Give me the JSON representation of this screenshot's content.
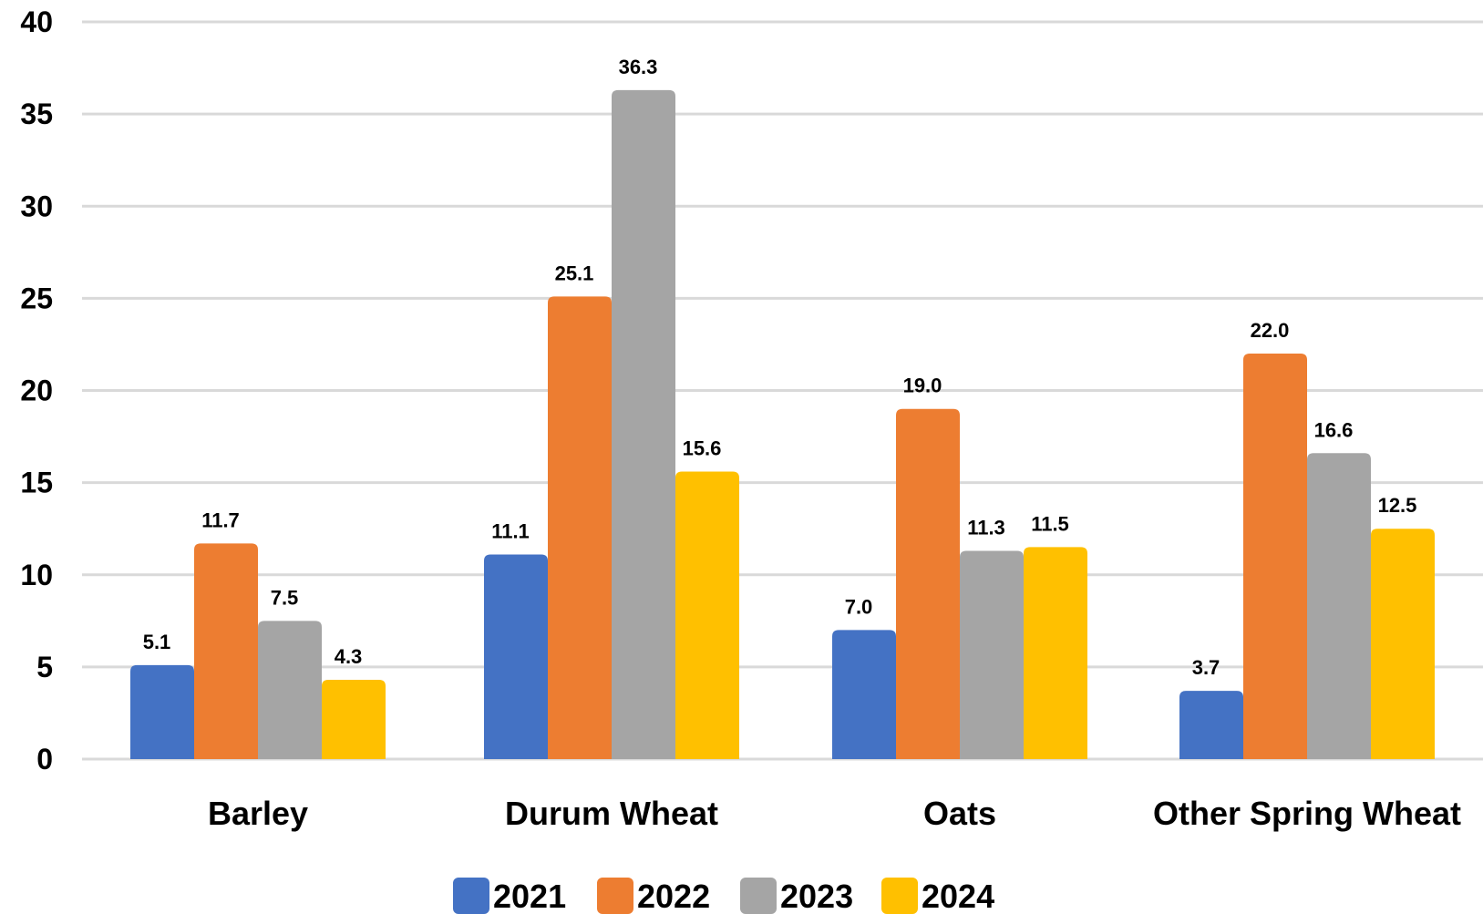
{
  "chart_data": {
    "type": "bar",
    "categories": [
      "Barley",
      "Durum Wheat",
      "Oats",
      "Other Spring Wheat"
    ],
    "series": [
      {
        "name": "2021",
        "color": "#4472C4",
        "values": [
          5.1,
          11.1,
          7.0,
          3.7
        ]
      },
      {
        "name": "2022",
        "color": "#ED7D31",
        "values": [
          11.7,
          25.1,
          19.0,
          22.0
        ]
      },
      {
        "name": "2023",
        "color": "#A5A5A5",
        "values": [
          7.5,
          36.3,
          11.3,
          16.6
        ]
      },
      {
        "name": "2024",
        "color": "#FFC000",
        "values": [
          4.3,
          15.6,
          11.5,
          12.5
        ]
      }
    ],
    "data_labels": [
      [
        "5.1",
        "11.1",
        "7.0",
        "3.7"
      ],
      [
        "11.7",
        "25.1",
        "19.0",
        "22.0"
      ],
      [
        "7.5",
        "36.3",
        "11.3",
        "16.6"
      ],
      [
        "4.3",
        "15.6",
        "11.5",
        "12.5"
      ]
    ],
    "ylim": [
      0,
      40
    ],
    "yticks": [
      "0",
      "5",
      "10",
      "15",
      "20",
      "25",
      "30",
      "35",
      "40"
    ],
    "grid": true,
    "legend_position": "bottom"
  }
}
